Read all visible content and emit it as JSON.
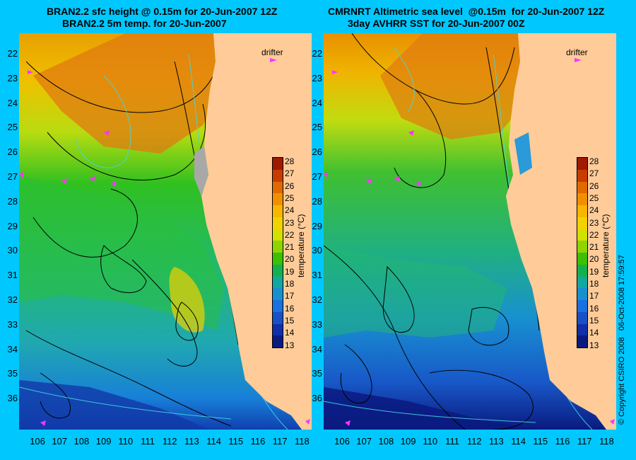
{
  "left_panel": {
    "title_line1": "BRAN2.2 sfc height @ 0.15m for 20-Jun-2007 12Z",
    "title_line2": "BRAN2.2 5m temp. for 20-Jun-2007",
    "drifter_label": "drifter"
  },
  "right_panel": {
    "title_line1": "CMRNRT Altimetric sea level  @0.15m  for 20-Jun-2007 12Z",
    "title_line2": "3day AVHRR SST for 20-Jun-2007 00Z",
    "drifter_label": "drifter"
  },
  "axes": {
    "lat_labels": [
      "22",
      "23",
      "24",
      "25",
      "26",
      "27",
      "28",
      "29",
      "30",
      "31",
      "32",
      "33",
      "34",
      "35",
      "36"
    ],
    "lon_labels": [
      "106",
      "107",
      "108",
      "109",
      "110",
      "111",
      "112",
      "113",
      "114",
      "115",
      "116",
      "117",
      "118"
    ]
  },
  "colorbar": {
    "title": "temperature (°C)",
    "ticks": [
      "28",
      "27",
      "26",
      "25",
      "24",
      "23",
      "22",
      "21",
      "20",
      "19",
      "18",
      "17",
      "16",
      "15",
      "14",
      "13"
    ],
    "colors": [
      "#a01a00",
      "#c83c00",
      "#e06a00",
      "#f09000",
      "#f7b600",
      "#f2d200",
      "#d4e000",
      "#8ed400",
      "#3cc000",
      "#14b050",
      "#10a8a0",
      "#1890d0",
      "#1a70e0",
      "#1850c8",
      "#102fa8",
      "#0a1a80"
    ]
  },
  "copyright": "© Copyright CSIRO 2008",
  "timestamp": "06-Oct-2008 17:59:57"
}
